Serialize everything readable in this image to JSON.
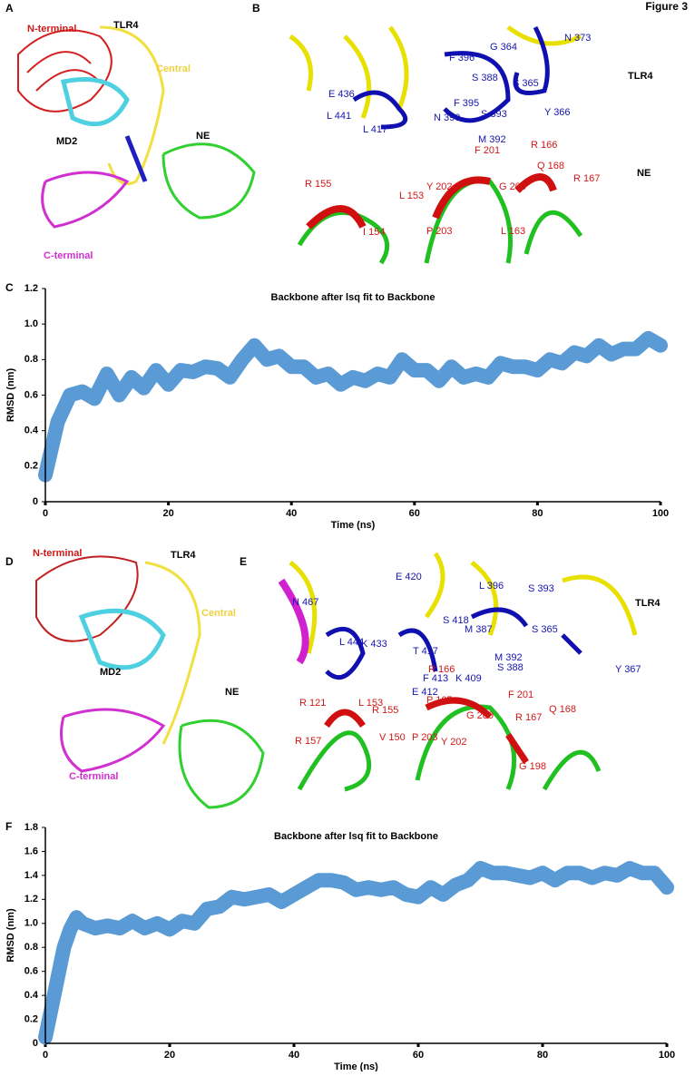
{
  "figure_label": "Figure 3",
  "panels": {
    "A": {
      "label": "A",
      "texts": [
        "N-terminal",
        "TLR4",
        "Central",
        "MD2",
        "NE",
        "C-terminal"
      ]
    },
    "B": {
      "label": "B",
      "texts": [
        "N 373",
        "TLR4",
        "F 396",
        "G 364",
        "S 365",
        "Y 366",
        "S 393",
        "M 392",
        "F 201",
        "N 390",
        "L 441",
        "L 417",
        "E 436",
        "F 395",
        "S 388",
        "R 166",
        "Q 168",
        "NE",
        "R 167",
        "R 155",
        "L 153",
        "Y 202",
        "G 200",
        "P 203",
        "L 163",
        "I 154"
      ]
    },
    "D": {
      "label": "D",
      "texts": [
        "N-terminal",
        "TLR4",
        "Central",
        "MD2",
        "NE",
        "C-terminal"
      ]
    },
    "E": {
      "label": "E",
      "texts": [
        "E 420",
        "L 396",
        "S 393",
        "TLR4",
        "N 467",
        "S 418",
        "M 387",
        "S 365",
        "L 444",
        "K 433",
        "T 417",
        "M 392",
        "S 388",
        "Y 367",
        "R 166",
        "F 413",
        "K 409",
        "F 201",
        "E 412",
        "R 121",
        "L 153",
        "P 165",
        "Q 168",
        "R 155",
        "G 200",
        "R 167",
        "R 157",
        "V 150",
        "P 203",
        "Y 202",
        "G 198"
      ]
    }
  },
  "chart_data": [
    {
      "type": "line",
      "title": "Backbone after lsq fit to Backbone",
      "panel": "C",
      "x_label": "Time (ns)",
      "y_label": "RMSD (nm)",
      "color": "#5b9bd5",
      "x": [
        0,
        2,
        4,
        6,
        8,
        10,
        12,
        14,
        16,
        18,
        20,
        22,
        24,
        26,
        28,
        30,
        32,
        34,
        36,
        38,
        40,
        42,
        44,
        46,
        48,
        50,
        52,
        54,
        56,
        58,
        60,
        62,
        64,
        66,
        68,
        70,
        72,
        74,
        76,
        78,
        80,
        82,
        84,
        86,
        88,
        90,
        92,
        94,
        96,
        98,
        100
      ],
      "values": [
        0.15,
        0.45,
        0.6,
        0.62,
        0.58,
        0.72,
        0.6,
        0.7,
        0.64,
        0.74,
        0.66,
        0.74,
        0.73,
        0.76,
        0.75,
        0.7,
        0.8,
        0.88,
        0.8,
        0.82,
        0.76,
        0.76,
        0.7,
        0.72,
        0.66,
        0.7,
        0.68,
        0.72,
        0.7,
        0.8,
        0.74,
        0.74,
        0.68,
        0.76,
        0.7,
        0.72,
        0.7,
        0.78,
        0.76,
        0.76,
        0.74,
        0.8,
        0.78,
        0.84,
        0.82,
        0.88,
        0.83,
        0.86,
        0.86,
        0.92,
        0.88
      ],
      "xlim": [
        0,
        100
      ],
      "xticks": [
        0,
        20,
        40,
        60,
        80,
        100
      ],
      "ylim": [
        0,
        1.2
      ],
      "yticks": [
        0,
        0.2,
        0.4,
        0.6,
        0.8,
        {
          "value": 1,
          "label": "1.0"
        },
        1.2
      ]
    },
    {
      "type": "line",
      "title": "Backbone after lsq fit to Backbone",
      "panel": "F",
      "x_label": "Time (ns)",
      "y_label": "RMSD (nm)",
      "color": "#5b9bd5",
      "x": [
        0,
        1,
        2,
        3,
        4,
        5,
        6,
        8,
        10,
        12,
        14,
        16,
        18,
        20,
        22,
        24,
        26,
        28,
        30,
        32,
        34,
        36,
        38,
        40,
        42,
        44,
        46,
        48,
        50,
        52,
        54,
        56,
        58,
        60,
        62,
        64,
        66,
        68,
        70,
        72,
        74,
        76,
        78,
        80,
        82,
        84,
        86,
        88,
        90,
        92,
        94,
        96,
        98,
        100
      ],
      "values": [
        0.05,
        0.3,
        0.55,
        0.8,
        0.95,
        1.05,
        1.0,
        0.96,
        0.98,
        0.96,
        1.02,
        0.96,
        1.0,
        0.95,
        1.02,
        1.0,
        1.12,
        1.14,
        1.22,
        1.2,
        1.22,
        1.24,
        1.18,
        1.24,
        1.3,
        1.36,
        1.36,
        1.34,
        1.28,
        1.3,
        1.28,
        1.3,
        1.24,
        1.22,
        1.3,
        1.24,
        1.32,
        1.36,
        1.46,
        1.42,
        1.42,
        1.4,
        1.38,
        1.42,
        1.36,
        1.42,
        1.42,
        1.38,
        1.42,
        1.4,
        1.46,
        1.42,
        1.42,
        1.3
      ],
      "xlim": [
        0,
        100
      ],
      "xticks": [
        0,
        20,
        40,
        60,
        80,
        100
      ],
      "ylim": [
        0,
        1.8
      ],
      "yticks": [
        0,
        0.2,
        0.4,
        0.6,
        0.8,
        {
          "value": 1,
          "label": "1.0"
        },
        1.2,
        1.4,
        1.6,
        1.8
      ]
    }
  ]
}
